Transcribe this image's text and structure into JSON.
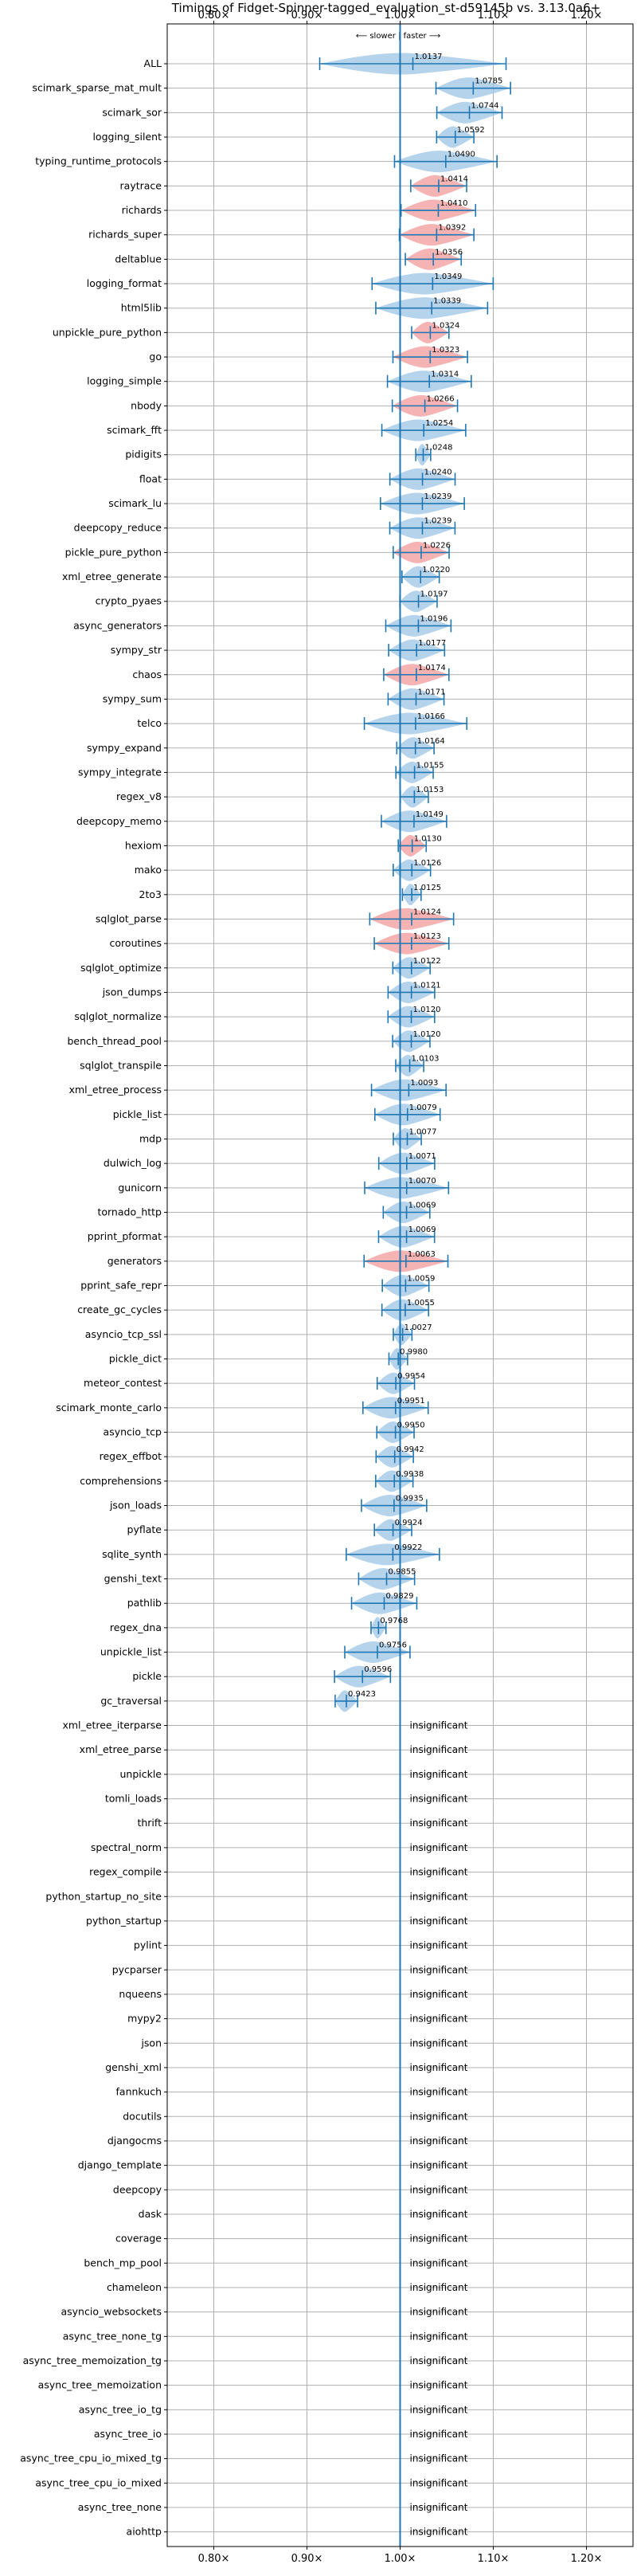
{
  "chart_data": {
    "type": "violin",
    "title": "Timings of Fidget-Spinner-tagged_evaluation_st-d59145b vs. 3.13.0a6+",
    "direction_label": "⟵ slower | faster ⟶",
    "x_ticks": [
      {
        "value": 0.8,
        "label": "0.80×"
      },
      {
        "value": 0.9,
        "label": "0.90×"
      },
      {
        "value": 1.0,
        "label": "1.00×"
      },
      {
        "value": 1.1,
        "label": "1.10×"
      },
      {
        "value": 1.2,
        "label": "1.20×"
      }
    ],
    "xlim": [
      0.75,
      1.25
    ],
    "reference_line": 1.0,
    "grid": true,
    "insignificant_label": "insignificant",
    "colors": {
      "faster": "#9ec4e6",
      "slower": "#f19a9a",
      "errorbar": "#1f77b4",
      "reference": "#1f77b4"
    },
    "rows": [
      {
        "name": "ALL",
        "value": 1.0137,
        "label": "1.0137",
        "err": 0.1,
        "color": "faster"
      },
      {
        "name": "scimark_sparse_mat_mult",
        "value": 1.0785,
        "label": "1.0785",
        "err": 0.04,
        "color": "faster"
      },
      {
        "name": "scimark_sor",
        "value": 1.0744,
        "label": "1.0744",
        "err": 0.035,
        "color": "faster"
      },
      {
        "name": "logging_silent",
        "value": 1.0592,
        "label": "1.0592",
        "err": 0.02,
        "color": "faster"
      },
      {
        "name": "typing_runtime_protocols",
        "value": 1.049,
        "label": "1.0490",
        "err": 0.055,
        "color": "faster"
      },
      {
        "name": "raytrace",
        "value": 1.0414,
        "label": "1.0414",
        "err": 0.03,
        "color": "slower"
      },
      {
        "name": "richards",
        "value": 1.041,
        "label": "1.0410",
        "err": 0.04,
        "color": "slower"
      },
      {
        "name": "richards_super",
        "value": 1.0392,
        "label": "1.0392",
        "err": 0.04,
        "color": "slower"
      },
      {
        "name": "deltablue",
        "value": 1.0356,
        "label": "1.0356",
        "err": 0.03,
        "color": "slower"
      },
      {
        "name": "logging_format",
        "value": 1.0349,
        "label": "1.0349",
        "err": 0.065,
        "color": "faster"
      },
      {
        "name": "html5lib",
        "value": 1.0339,
        "label": "1.0339",
        "err": 0.06,
        "color": "faster"
      },
      {
        "name": "unpickle_pure_python",
        "value": 1.0324,
        "label": "1.0324",
        "err": 0.02,
        "color": "slower"
      },
      {
        "name": "go",
        "value": 1.0323,
        "label": "1.0323",
        "err": 0.04,
        "color": "slower"
      },
      {
        "name": "logging_simple",
        "value": 1.0314,
        "label": "1.0314",
        "err": 0.045,
        "color": "faster"
      },
      {
        "name": "nbody",
        "value": 1.0266,
        "label": "1.0266",
        "err": 0.035,
        "color": "slower"
      },
      {
        "name": "scimark_fft",
        "value": 1.0254,
        "label": "1.0254",
        "err": 0.045,
        "color": "faster"
      },
      {
        "name": "pidigits",
        "value": 1.0248,
        "label": "1.0248",
        "err": 0.008,
        "color": "faster"
      },
      {
        "name": "float",
        "value": 1.024,
        "label": "1.0240",
        "err": 0.035,
        "color": "faster"
      },
      {
        "name": "scimark_lu",
        "value": 1.0239,
        "label": "1.0239",
        "err": 0.045,
        "color": "faster"
      },
      {
        "name": "deepcopy_reduce",
        "value": 1.0239,
        "label": "1.0239",
        "err": 0.035,
        "color": "faster"
      },
      {
        "name": "pickle_pure_python",
        "value": 1.0226,
        "label": "1.0226",
        "err": 0.03,
        "color": "slower"
      },
      {
        "name": "xml_etree_generate",
        "value": 1.022,
        "label": "1.0220",
        "err": 0.02,
        "color": "faster"
      },
      {
        "name": "crypto_pyaes",
        "value": 1.0197,
        "label": "1.0197",
        "err": 0.02,
        "color": "faster"
      },
      {
        "name": "async_generators",
        "value": 1.0196,
        "label": "1.0196",
        "err": 0.035,
        "color": "faster"
      },
      {
        "name": "sympy_str",
        "value": 1.0177,
        "label": "1.0177",
        "err": 0.03,
        "color": "faster"
      },
      {
        "name": "chaos",
        "value": 1.0174,
        "label": "1.0174",
        "err": 0.035,
        "color": "slower"
      },
      {
        "name": "sympy_sum",
        "value": 1.0171,
        "label": "1.0171",
        "err": 0.03,
        "color": "faster"
      },
      {
        "name": "telco",
        "value": 1.0166,
        "label": "1.0166",
        "err": 0.055,
        "color": "faster"
      },
      {
        "name": "sympy_expand",
        "value": 1.0164,
        "label": "1.0164",
        "err": 0.02,
        "color": "faster"
      },
      {
        "name": "sympy_integrate",
        "value": 1.0155,
        "label": "1.0155",
        "err": 0.02,
        "color": "faster"
      },
      {
        "name": "regex_v8",
        "value": 1.0153,
        "label": "1.0153",
        "err": 0.015,
        "color": "faster"
      },
      {
        "name": "deepcopy_memo",
        "value": 1.0149,
        "label": "1.0149",
        "err": 0.035,
        "color": "faster"
      },
      {
        "name": "hexiom",
        "value": 1.013,
        "label": "1.0130",
        "err": 0.015,
        "color": "slower"
      },
      {
        "name": "mako",
        "value": 1.0126,
        "label": "1.0126",
        "err": 0.02,
        "color": "faster"
      },
      {
        "name": "2to3",
        "value": 1.0125,
        "label": "1.0125",
        "err": 0.01,
        "color": "faster"
      },
      {
        "name": "sqlglot_parse",
        "value": 1.0124,
        "label": "1.0124",
        "err": 0.045,
        "color": "slower"
      },
      {
        "name": "coroutines",
        "value": 1.0123,
        "label": "1.0123",
        "err": 0.04,
        "color": "slower"
      },
      {
        "name": "sqlglot_optimize",
        "value": 1.0122,
        "label": "1.0122",
        "err": 0.02,
        "color": "faster"
      },
      {
        "name": "json_dumps",
        "value": 1.0121,
        "label": "1.0121",
        "err": 0.025,
        "color": "faster"
      },
      {
        "name": "sqlglot_normalize",
        "value": 1.012,
        "label": "1.0120",
        "err": 0.025,
        "color": "faster"
      },
      {
        "name": "bench_thread_pool",
        "value": 1.012,
        "label": "1.0120",
        "err": 0.02,
        "color": "faster"
      },
      {
        "name": "sqlglot_transpile",
        "value": 1.0103,
        "label": "1.0103",
        "err": 0.015,
        "color": "faster"
      },
      {
        "name": "xml_etree_process",
        "value": 1.0093,
        "label": "1.0093",
        "err": 0.04,
        "color": "faster"
      },
      {
        "name": "pickle_list",
        "value": 1.0079,
        "label": "1.0079",
        "err": 0.035,
        "color": "faster"
      },
      {
        "name": "mdp",
        "value": 1.0077,
        "label": "1.0077",
        "err": 0.015,
        "color": "faster"
      },
      {
        "name": "dulwich_log",
        "value": 1.0071,
        "label": "1.0071",
        "err": 0.03,
        "color": "faster"
      },
      {
        "name": "gunicorn",
        "value": 1.007,
        "label": "1.0070",
        "err": 0.045,
        "color": "faster"
      },
      {
        "name": "tornado_http",
        "value": 1.0069,
        "label": "1.0069",
        "err": 0.025,
        "color": "faster"
      },
      {
        "name": "pprint_pformat",
        "value": 1.0069,
        "label": "1.0069",
        "err": 0.03,
        "color": "faster"
      },
      {
        "name": "generators",
        "value": 1.0063,
        "label": "1.0063",
        "err": 0.045,
        "color": "slower"
      },
      {
        "name": "pprint_safe_repr",
        "value": 1.0059,
        "label": "1.0059",
        "err": 0.025,
        "color": "faster"
      },
      {
        "name": "create_gc_cycles",
        "value": 1.0055,
        "label": "1.0055",
        "err": 0.025,
        "color": "faster"
      },
      {
        "name": "asyncio_tcp_ssl",
        "value": 1.0027,
        "label": "1.0027",
        "err": 0.01,
        "color": "faster"
      },
      {
        "name": "pickle_dict",
        "value": 0.998,
        "label": "0.9980",
        "err": 0.01,
        "color": "faster"
      },
      {
        "name": "meteor_contest",
        "value": 0.9954,
        "label": "0.9954",
        "err": 0.02,
        "color": "faster"
      },
      {
        "name": "scimark_monte_carlo",
        "value": 0.9951,
        "label": "0.9951",
        "err": 0.035,
        "color": "faster"
      },
      {
        "name": "asyncio_tcp",
        "value": 0.995,
        "label": "0.9950",
        "err": 0.02,
        "color": "faster"
      },
      {
        "name": "regex_effbot",
        "value": 0.9942,
        "label": "0.9942",
        "err": 0.02,
        "color": "faster"
      },
      {
        "name": "comprehensions",
        "value": 0.9938,
        "label": "0.9938",
        "err": 0.02,
        "color": "faster"
      },
      {
        "name": "json_loads",
        "value": 0.9935,
        "label": "0.9935",
        "err": 0.035,
        "color": "faster"
      },
      {
        "name": "pyflate",
        "value": 0.9924,
        "label": "0.9924",
        "err": 0.02,
        "color": "faster"
      },
      {
        "name": "sqlite_synth",
        "value": 0.9922,
        "label": "0.9922",
        "err": 0.05,
        "color": "faster"
      },
      {
        "name": "genshi_text",
        "value": 0.9855,
        "label": "0.9855",
        "err": 0.03,
        "color": "faster"
      },
      {
        "name": "pathlib",
        "value": 0.9829,
        "label": "0.9829",
        "err": 0.035,
        "color": "faster"
      },
      {
        "name": "regex_dna",
        "value": 0.9768,
        "label": "0.9768",
        "err": 0.008,
        "color": "faster"
      },
      {
        "name": "unpickle_list",
        "value": 0.9756,
        "label": "0.9756",
        "err": 0.035,
        "color": "faster"
      },
      {
        "name": "pickle",
        "value": 0.9596,
        "label": "0.9596",
        "err": 0.03,
        "color": "faster"
      },
      {
        "name": "gc_traversal",
        "value": 0.9423,
        "label": "0.9423",
        "err": 0.012,
        "color": "faster"
      },
      {
        "name": "xml_etree_iterparse",
        "insignificant": true
      },
      {
        "name": "xml_etree_parse",
        "insignificant": true
      },
      {
        "name": "unpickle",
        "insignificant": true
      },
      {
        "name": "tomli_loads",
        "insignificant": true
      },
      {
        "name": "thrift",
        "insignificant": true
      },
      {
        "name": "spectral_norm",
        "insignificant": true
      },
      {
        "name": "regex_compile",
        "insignificant": true
      },
      {
        "name": "python_startup_no_site",
        "insignificant": true
      },
      {
        "name": "python_startup",
        "insignificant": true
      },
      {
        "name": "pylint",
        "insignificant": true
      },
      {
        "name": "pycparser",
        "insignificant": true
      },
      {
        "name": "nqueens",
        "insignificant": true
      },
      {
        "name": "mypy2",
        "insignificant": true
      },
      {
        "name": "json",
        "insignificant": true
      },
      {
        "name": "genshi_xml",
        "insignificant": true
      },
      {
        "name": "fannkuch",
        "insignificant": true
      },
      {
        "name": "docutils",
        "insignificant": true
      },
      {
        "name": "djangocms",
        "insignificant": true
      },
      {
        "name": "django_template",
        "insignificant": true
      },
      {
        "name": "deepcopy",
        "insignificant": true
      },
      {
        "name": "dask",
        "insignificant": true
      },
      {
        "name": "coverage",
        "insignificant": true
      },
      {
        "name": "bench_mp_pool",
        "insignificant": true
      },
      {
        "name": "chameleon",
        "insignificant": true
      },
      {
        "name": "asyncio_websockets",
        "insignificant": true
      },
      {
        "name": "async_tree_none_tg",
        "insignificant": true
      },
      {
        "name": "async_tree_memoization_tg",
        "insignificant": true
      },
      {
        "name": "async_tree_memoization",
        "insignificant": true
      },
      {
        "name": "async_tree_io_tg",
        "insignificant": true
      },
      {
        "name": "async_tree_io",
        "insignificant": true
      },
      {
        "name": "async_tree_cpu_io_mixed_tg",
        "insignificant": true
      },
      {
        "name": "async_tree_cpu_io_mixed",
        "insignificant": true
      },
      {
        "name": "async_tree_none",
        "insignificant": true
      },
      {
        "name": "aiohttp",
        "insignificant": true
      }
    ]
  }
}
